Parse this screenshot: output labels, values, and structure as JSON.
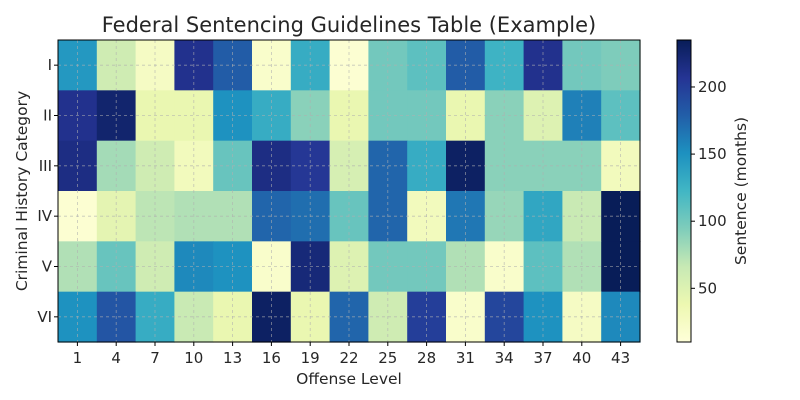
{
  "chart_data": {
    "type": "heatmap",
    "title": "Federal Sentencing Guidelines Table (Example)",
    "xlabel": "Offense Level",
    "ylabel": "Criminal History Category",
    "x_categories": [
      "1",
      "4",
      "7",
      "10",
      "13",
      "16",
      "19",
      "22",
      "25",
      "28",
      "31",
      "34",
      "37",
      "40",
      "43"
    ],
    "y_categories": [
      "I",
      "II",
      "III",
      "IV",
      "V",
      "VI"
    ],
    "colorbar": {
      "label": "Sentence (months)",
      "range": [
        10,
        235
      ],
      "ticks": [
        50,
        100,
        150,
        200
      ],
      "colormap": "YlGnBu"
    },
    "grid": true,
    "values": [
      [
        145,
        60,
        25,
        210,
        180,
        20,
        130,
        15,
        100,
        110,
        180,
        125,
        210,
        100,
        95
      ],
      [
        210,
        225,
        40,
        40,
        150,
        130,
        90,
        40,
        100,
        100,
        40,
        90,
        50,
        160,
        110
      ],
      [
        215,
        80,
        60,
        30,
        105,
        215,
        205,
        55,
        175,
        130,
        230,
        90,
        90,
        90,
        30
      ],
      [
        15,
        45,
        70,
        75,
        75,
        175,
        170,
        105,
        175,
        30,
        165,
        85,
        135,
        65,
        235
      ],
      [
        75,
        105,
        60,
        155,
        150,
        20,
        220,
        50,
        100,
        100,
        75,
        20,
        110,
        75,
        235
      ],
      [
        150,
        185,
        130,
        65,
        40,
        230,
        40,
        175,
        60,
        200,
        20,
        195,
        150,
        25,
        155
      ]
    ]
  }
}
